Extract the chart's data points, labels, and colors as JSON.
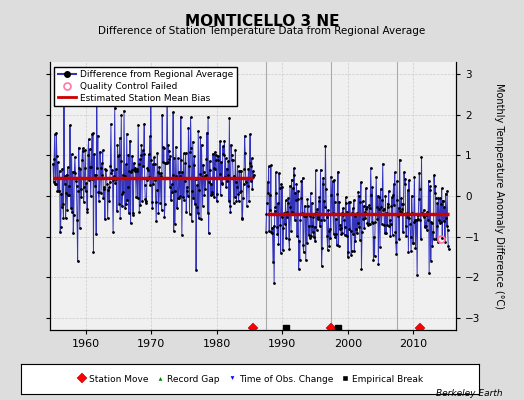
{
  "title": "MONTICELLO 3 NE",
  "subtitle": "Difference of Station Temperature Data from Regional Average",
  "ylabel": "Monthly Temperature Anomaly Difference (°C)",
  "xlabel_years": [
    1960,
    1970,
    1980,
    1990,
    2000,
    2010
  ],
  "xlim": [
    1954.5,
    2016.5
  ],
  "ylim": [
    -3.3,
    3.3
  ],
  "yticks": [
    -3,
    -2,
    -1,
    0,
    1,
    2,
    3
  ],
  "background_color": "#dddddd",
  "plot_bg_color": "#f0f0f0",
  "segment1_start": 1955.0,
  "segment1_end": 1985.7,
  "segment1_bias": 0.45,
  "segment2_start": 1987.5,
  "segment2_end": 2015.5,
  "segment2_bias": -0.45,
  "gap_start": 1985.5,
  "gap_end": 1987.6,
  "vertical_lines": [
    1987.5,
    1997.5,
    2007.5
  ],
  "station_moves": [
    1985.5,
    1997.5,
    2011.0
  ],
  "empirical_breaks": [
    1990.5,
    1998.5
  ],
  "qc_fail_x": 2014.2,
  "qc_fail_y": -1.05,
  "seed": 42,
  "line_color": "#3333bb",
  "bias_color": "#cc0000",
  "grid_color": "#cccccc",
  "vline_color": "#aaaaaa"
}
